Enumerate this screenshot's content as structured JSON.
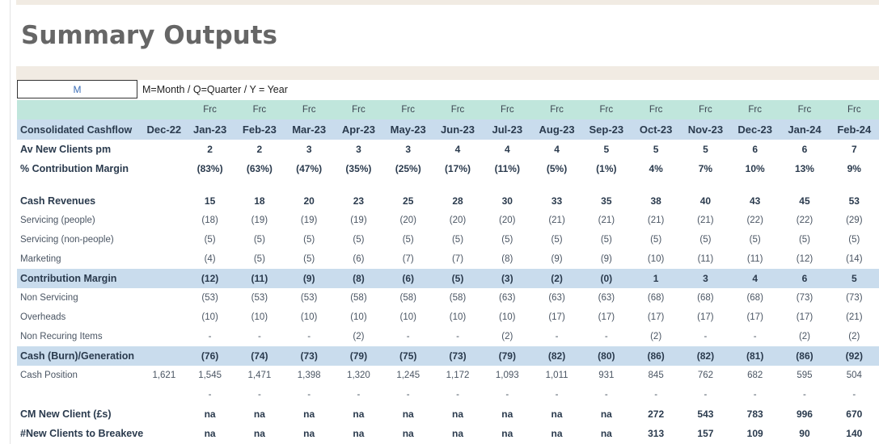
{
  "page_title": "Summary Outputs",
  "mode": {
    "value": "M",
    "help": "M=Month / Q=Quarter / Y = Year"
  },
  "columns": {
    "frc_labels": [
      "",
      "Frc",
      "Frc",
      "Frc",
      "Frc",
      "Frc",
      "Frc",
      "Frc",
      "Frc",
      "Frc",
      "Frc",
      "Frc",
      "Frc",
      "Frc",
      "Frc"
    ],
    "header_label": "Consolidated Cashflow",
    "months": [
      "Dec-22",
      "Jan-23",
      "Feb-23",
      "Mar-23",
      "Apr-23",
      "May-23",
      "Jun-23",
      "Jul-23",
      "Aug-23",
      "Sep-23",
      "Oct-23",
      "Nov-23",
      "Dec-23",
      "Jan-24",
      "Feb-24"
    ]
  },
  "rows": [
    {
      "label": "Av New Clients pm",
      "style": "bold",
      "values": [
        "",
        "2",
        "2",
        "3",
        "3",
        "3",
        "4",
        "4",
        "4",
        "5",
        "5",
        "5",
        "6",
        "6",
        "7"
      ]
    },
    {
      "label": "% Contribution Margin",
      "style": "bold",
      "values": [
        "",
        "(83%)",
        "(63%)",
        "(47%)",
        "(35%)",
        "(25%)",
        "(17%)",
        "(11%)",
        "(5%)",
        "(1%)",
        "4%",
        "7%",
        "10%",
        "13%",
        "9%"
      ]
    },
    {
      "label": "",
      "style": "spacer",
      "values": []
    },
    {
      "label": "Cash Revenues",
      "style": "bold",
      "values": [
        "",
        "15",
        "18",
        "20",
        "23",
        "25",
        "28",
        "30",
        "33",
        "35",
        "38",
        "40",
        "43",
        "45",
        "53"
      ]
    },
    {
      "label": "Servicing (people)",
      "style": "norm",
      "values": [
        "",
        "(18)",
        "(19)",
        "(19)",
        "(19)",
        "(20)",
        "(20)",
        "(20)",
        "(21)",
        "(21)",
        "(21)",
        "(21)",
        "(22)",
        "(22)",
        "(29)"
      ]
    },
    {
      "label": "Servicing (non-people)",
      "style": "norm",
      "values": [
        "",
        "(5)",
        "(5)",
        "(5)",
        "(5)",
        "(5)",
        "(5)",
        "(5)",
        "(5)",
        "(5)",
        "(5)",
        "(5)",
        "(5)",
        "(5)",
        "(5)"
      ]
    },
    {
      "label": "Marketing",
      "style": "norm",
      "values": [
        "",
        "(4)",
        "(5)",
        "(5)",
        "(6)",
        "(7)",
        "(7)",
        "(8)",
        "(9)",
        "(9)",
        "(10)",
        "(11)",
        "(11)",
        "(12)",
        "(14)"
      ]
    },
    {
      "label": "Contribution Margin",
      "style": "hl",
      "values": [
        "",
        "(12)",
        "(11)",
        "(9)",
        "(8)",
        "(6)",
        "(5)",
        "(3)",
        "(2)",
        "(0)",
        "1",
        "3",
        "4",
        "6",
        "5"
      ]
    },
    {
      "label": "Non Servicing",
      "style": "norm",
      "values": [
        "",
        "(53)",
        "(53)",
        "(53)",
        "(58)",
        "(58)",
        "(58)",
        "(63)",
        "(63)",
        "(63)",
        "(68)",
        "(68)",
        "(68)",
        "(73)",
        "(73)"
      ]
    },
    {
      "label": "Overheads",
      "style": "norm",
      "values": [
        "",
        "(10)",
        "(10)",
        "(10)",
        "(10)",
        "(10)",
        "(10)",
        "(10)",
        "(17)",
        "(17)",
        "(17)",
        "(17)",
        "(17)",
        "(17)",
        "(21)"
      ]
    },
    {
      "label": "Non Recuring Items",
      "style": "norm",
      "values": [
        "",
        "-",
        "-",
        "-",
        "(2)",
        "-",
        "-",
        "(2)",
        "-",
        "-",
        "(2)",
        "-",
        "-",
        "(2)",
        "(2)"
      ]
    },
    {
      "label": "Cash (Burn)/Generation",
      "style": "hl",
      "values": [
        "",
        "(76)",
        "(74)",
        "(73)",
        "(79)",
        "(75)",
        "(73)",
        "(79)",
        "(82)",
        "(80)",
        "(86)",
        "(82)",
        "(81)",
        "(86)",
        "(92)"
      ]
    },
    {
      "label": "Cash Position",
      "style": "cash",
      "values": [
        "1,621",
        "1,545",
        "1,471",
        "1,398",
        "1,320",
        "1,245",
        "1,172",
        "1,093",
        "1,011",
        "931",
        "845",
        "762",
        "682",
        "595",
        "504"
      ]
    },
    {
      "label": "",
      "style": "norm",
      "values": [
        "",
        "-",
        "-",
        "-",
        "-",
        "-",
        "-",
        "-",
        "-",
        "-",
        "-",
        "-",
        "-",
        "-",
        "-"
      ]
    },
    {
      "label": "CM New Client (£s)",
      "style": "bold",
      "values": [
        "",
        "na",
        "na",
        "na",
        "na",
        "na",
        "na",
        "na",
        "na",
        "na",
        "272",
        "543",
        "783",
        "996",
        "670"
      ]
    },
    {
      "label": "#New Clients to Breakeven pm",
      "style": "bold",
      "values": [
        "",
        "na",
        "na",
        "na",
        "na",
        "na",
        "na",
        "na",
        "na",
        "na",
        "313",
        "157",
        "109",
        "90",
        "140"
      ]
    }
  ]
}
